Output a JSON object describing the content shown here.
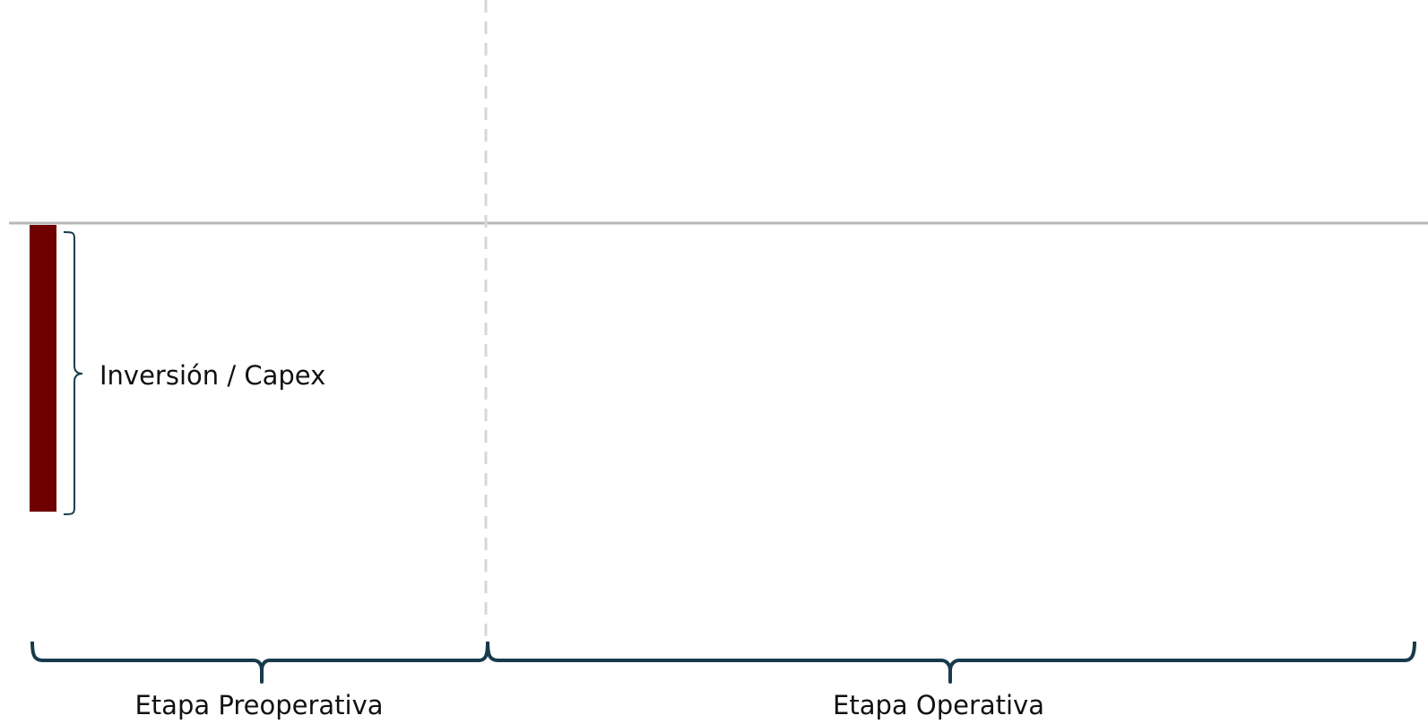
{
  "labels": {
    "capex": "Inversión / Capex",
    "preoperative": "Etapa Preoperativa",
    "operative": "Etapa Operativa"
  },
  "bar": {
    "name": "Inversión / Capex",
    "color": "#6e0000"
  },
  "colors": {
    "brace": "#173b4b",
    "baseline": "#b8b8b8",
    "divider": "#d7d7d7",
    "text": "#111111"
  }
}
